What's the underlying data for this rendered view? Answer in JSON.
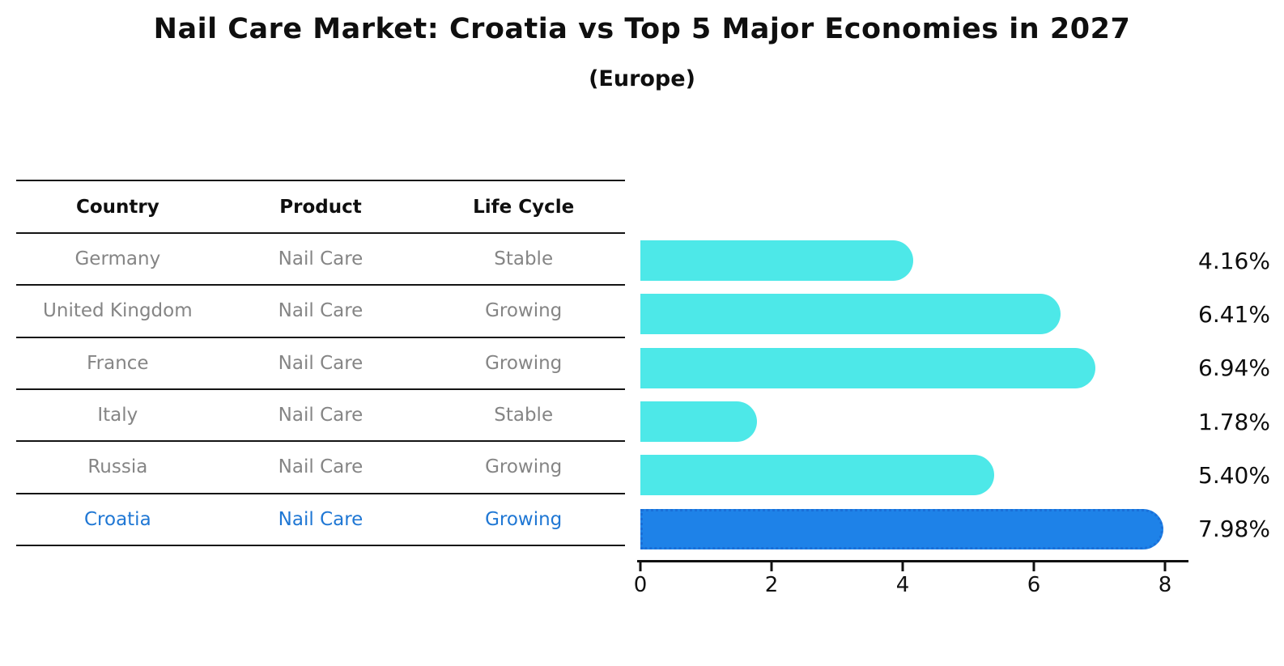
{
  "title": "Nail Care Market: Croatia vs Top 5 Major Economies in 2027",
  "subtitle": "(Europe)",
  "table": {
    "headers": [
      "Country",
      "Product",
      "Life Cycle"
    ],
    "rows": [
      {
        "country": "Germany",
        "product": "Nail Care",
        "life_cycle": "Stable"
      },
      {
        "country": "United Kingdom",
        "product": "Nail Care",
        "life_cycle": "Growing"
      },
      {
        "country": "France",
        "product": "Nail Care",
        "life_cycle": "Growing"
      },
      {
        "country": "Italy",
        "product": "Nail Care",
        "life_cycle": "Stable"
      },
      {
        "country": "Russia",
        "product": "Nail Care",
        "life_cycle": "Growing"
      },
      {
        "country": "Croatia",
        "product": "Nail Care",
        "life_cycle": "Growing"
      }
    ]
  },
  "chart_data": {
    "type": "bar",
    "orientation": "horizontal",
    "title": "Nail Care Market: Croatia vs Top 5 Major Economies in 2027",
    "subtitle": "(Europe)",
    "categories": [
      "Germany",
      "United Kingdom",
      "France",
      "Italy",
      "Russia",
      "Croatia"
    ],
    "values": [
      4.16,
      6.41,
      6.94,
      1.78,
      5.4,
      7.98
    ],
    "value_labels": [
      "4.16%",
      "6.41%",
      "6.94%",
      "1.78%",
      "5.40%",
      "7.98%"
    ],
    "xticks": [
      0,
      2,
      4,
      6,
      8
    ],
    "xtick_labels": [
      "0",
      "2",
      "4",
      "6",
      "8"
    ],
    "xlim": [
      0,
      8.35
    ],
    "grid": false,
    "legend": "none",
    "bar_color": "#4de8e8",
    "highlight_index": 5,
    "highlight_color": "#1e82e8",
    "highlight_border_color": "#1a6fd8",
    "highlight_text_color": "#1f77d4",
    "label_color": "#858585",
    "header_color": "#0f0f0f"
  }
}
